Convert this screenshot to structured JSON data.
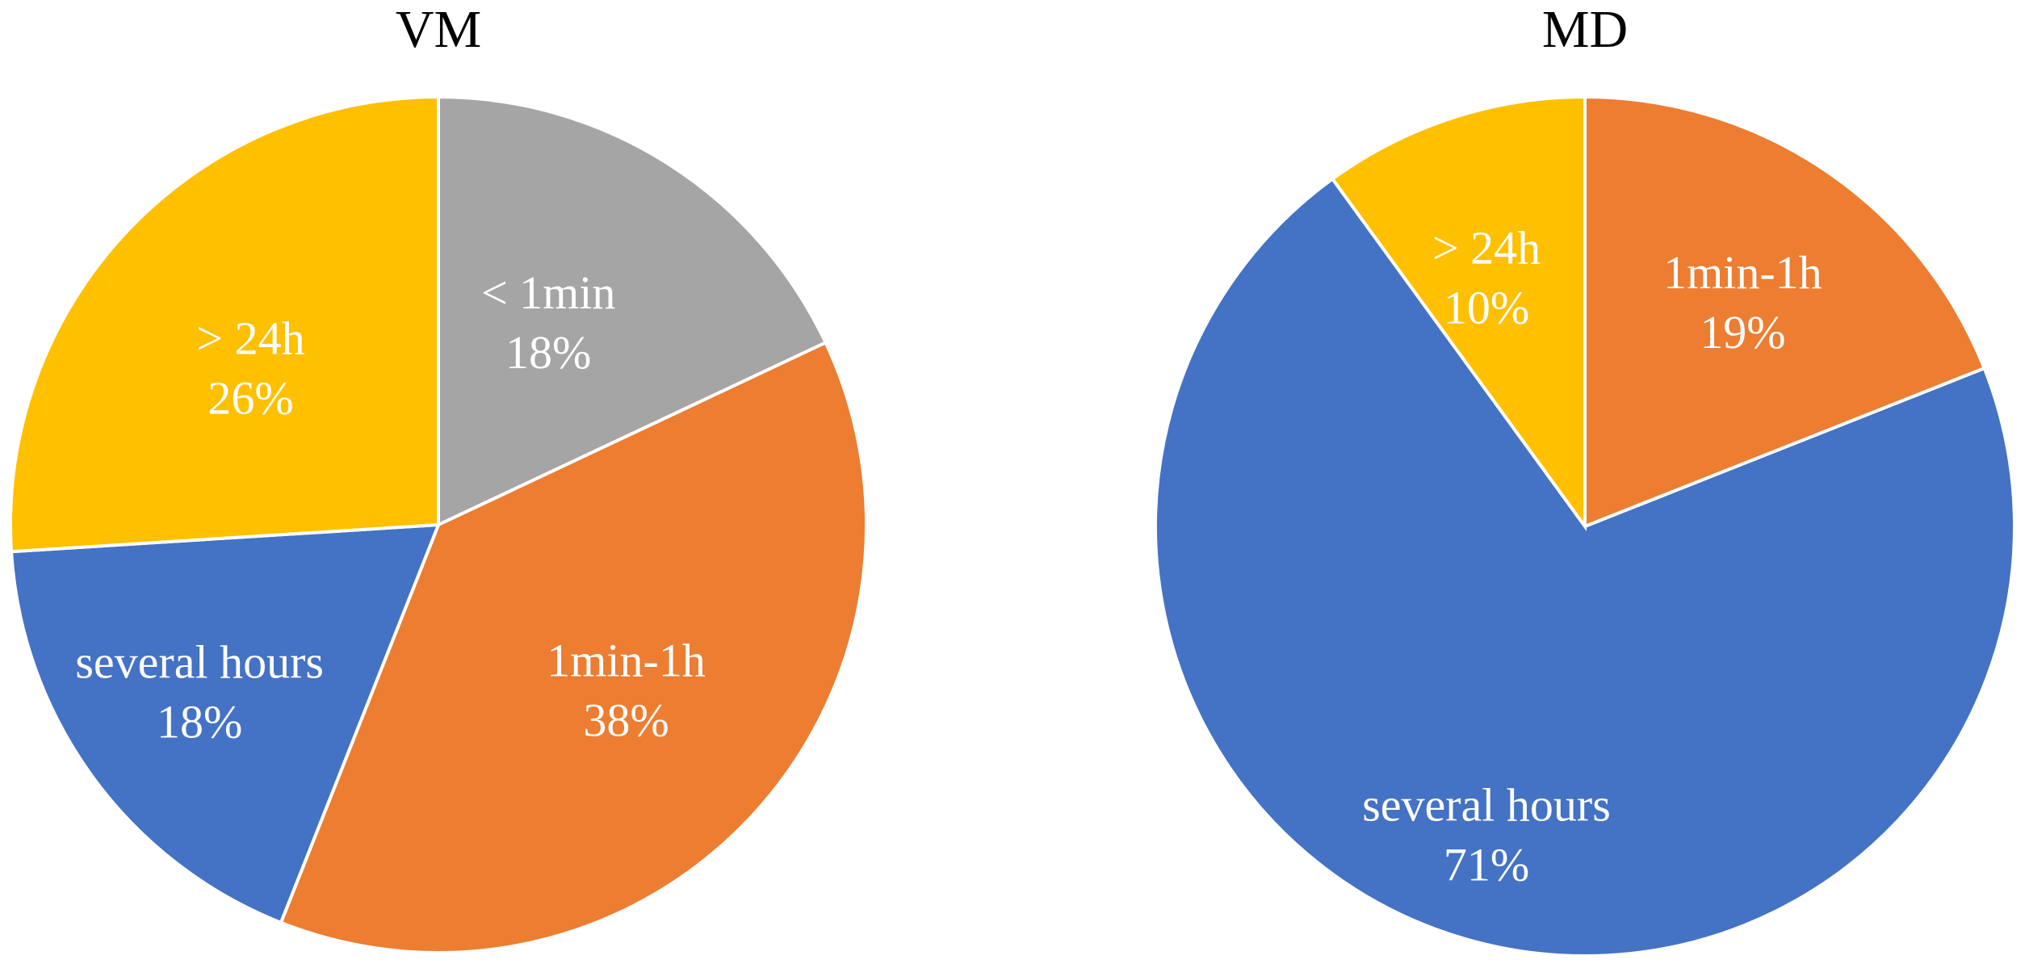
{
  "chart_data": [
    {
      "type": "pie",
      "title": "VM",
      "slices": [
        {
          "label": "< 1min",
          "value": 18,
          "value_label": "18%",
          "color": "#A5A5A5"
        },
        {
          "label": "1min-1h",
          "value": 38,
          "value_label": "38%",
          "color": "#ED7D31"
        },
        {
          "label": "several hours",
          "value": 18,
          "value_label": "18%",
          "color": "#4472C4"
        },
        {
          "label": "> 24h",
          "value": 26,
          "value_label": "26%",
          "color": "#FFC000"
        }
      ]
    },
    {
      "type": "pie",
      "title": "MD",
      "slices": [
        {
          "label": "1min-1h",
          "value": 19,
          "value_label": "19%",
          "color": "#ED7D31"
        },
        {
          "label": "several hours",
          "value": 71,
          "value_label": "71%",
          "color": "#4472C4"
        },
        {
          "label": "> 24h",
          "value": 10,
          "value_label": "10%",
          "color": "#FFC000"
        }
      ]
    }
  ]
}
